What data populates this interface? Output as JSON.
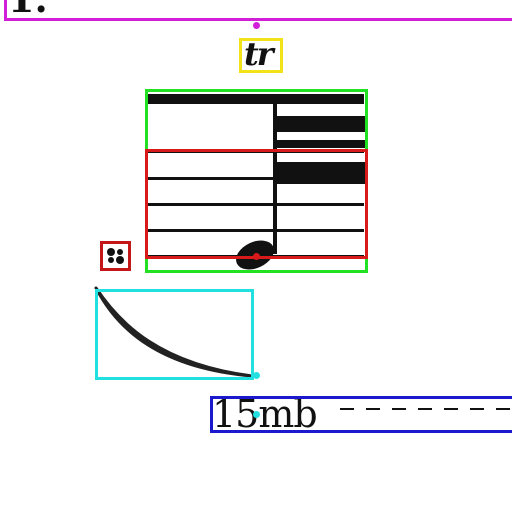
{
  "symbols": {
    "volta_label": "1.",
    "trill_label": "tr",
    "ottava_label": "15mb"
  },
  "colors": {
    "volta_box": "#d21ed8",
    "trill_box": "#f2e21a",
    "note_box": "#22e022",
    "staff_box": "#d81a1a",
    "ornament_box": "#c41818",
    "slur_box": "#22e0e0",
    "ottava_box": "#1a1acc",
    "ink": "#111111"
  },
  "icons": {
    "ornament": "turn-ornament-icon",
    "notehead": "notehead-icon"
  }
}
